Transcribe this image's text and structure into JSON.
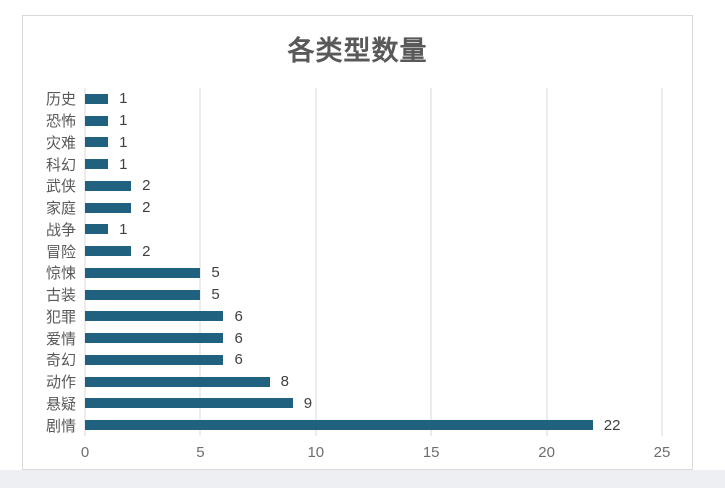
{
  "page": {
    "background": "#ffffff",
    "footer_strip_color": "#edeff2"
  },
  "card": {
    "background": "#ffffff",
    "border_color": "#d9d9d9"
  },
  "chart_data": {
    "type": "bar",
    "orientation": "horizontal",
    "title": "各类型数量",
    "categories": [
      "历史",
      "恐怖",
      "灾难",
      "科幻",
      "武侠",
      "家庭",
      "战争",
      "冒险",
      "惊悚",
      "古装",
      "犯罪",
      "爱情",
      "奇幻",
      "动作",
      "悬疑",
      "剧情"
    ],
    "values": [
      1,
      1,
      1,
      1,
      2,
      2,
      1,
      2,
      5,
      5,
      6,
      6,
      6,
      8,
      9,
      22
    ],
    "x_ticks": [
      "0",
      "5",
      "10",
      "15",
      "20",
      "25"
    ],
    "xlim": [
      0,
      25
    ],
    "grid": "vertical-lines-on",
    "legend": "none",
    "data_labels": "shown-right-of-bars",
    "bar_color": "#20617f",
    "colors": {
      "title": "#595959",
      "category_label": "#595959",
      "value_label": "#404040",
      "tick_label": "#6e6e6e",
      "gridline": "#d9d9d9"
    }
  }
}
